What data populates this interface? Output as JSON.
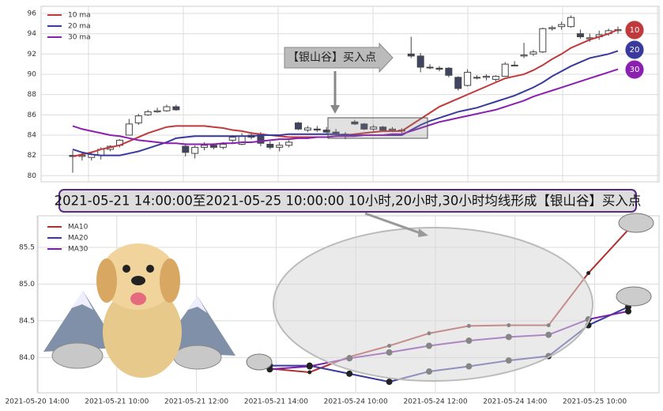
{
  "chart_data": [
    {
      "type": "candlestick",
      "annotation": "【银山谷】买入点",
      "badges": [
        "10",
        "20",
        "30"
      ],
      "ylim": [
        79.4,
        96.7
      ],
      "yticks": [
        80,
        82,
        84,
        86,
        88,
        90,
        92,
        94,
        96
      ],
      "grid": true,
      "legend": "upper left",
      "open": [
        82,
        81.9,
        81.8,
        82,
        82.6,
        83,
        84,
        85.2,
        86,
        86.3,
        86.4,
        86.8,
        82.9,
        82.2,
        82.8,
        83,
        82.8,
        83.5,
        83.1,
        84,
        84.1,
        83.1,
        82.8,
        83,
        85.2,
        84.5,
        84.6,
        84.5,
        84.3,
        84.1,
        85.3,
        85.1,
        84.6,
        84.8,
        84.5,
        84.5,
        92,
        91.8,
        90.7,
        90.6,
        90.6,
        89.7,
        88.9,
        89.7,
        89.7,
        89.5,
        89.8,
        90.9,
        91.8,
        92,
        92.2,
        94.5,
        94.7,
        94.7,
        94,
        93.5,
        93.7,
        94,
        94.3
      ],
      "high": [
        82.5,
        82.3,
        82.4,
        82.8,
        83,
        83.6,
        85.6,
        86.1,
        86.5,
        86.7,
        87,
        87,
        83.2,
        83,
        83.3,
        83.2,
        83.3,
        84,
        84.2,
        84.3,
        84.3,
        83.4,
        83.3,
        83.5,
        85.3,
        84.9,
        84.9,
        84.8,
        84.6,
        84.3,
        85.5,
        85.2,
        85,
        84.9,
        84.8,
        84.7,
        93.7,
        92.1,
        91,
        90.8,
        90.7,
        89.8,
        90.5,
        89.9,
        90,
        89.9,
        91.2,
        91.3,
        93.1,
        92.4,
        94.6,
        94.8,
        95.2,
        95.8,
        94.4,
        94,
        94.3,
        94.5,
        94.7
      ],
      "low": [
        80.3,
        81.5,
        81.5,
        81.6,
        82.4,
        82.8,
        84,
        85,
        85.9,
        86.2,
        86.3,
        86.4,
        81.9,
        81.7,
        82.5,
        82.6,
        82.6,
        83.2,
        83,
        83.6,
        82.9,
        82.6,
        82.4,
        82.8,
        84.5,
        84.3,
        84.3,
        84.2,
        84,
        83.6,
        85,
        84.5,
        84.4,
        84.4,
        84.3,
        84.2,
        91.6,
        90.2,
        90.5,
        90.3,
        89.7,
        88.4,
        88.8,
        89.5,
        89.4,
        89.3,
        89.8,
        90.8,
        91.6,
        91.8,
        92.1,
        94.3,
        94.4,
        94.6,
        93.5,
        93.2,
        93.4,
        93.8,
        94
      ],
      "close": [
        81.9,
        82,
        82.1,
        82.6,
        82.9,
        83.5,
        85.1,
        85.9,
        86.3,
        86.4,
        86.8,
        86.5,
        82.3,
        82.8,
        83,
        82.8,
        83.1,
        83.8,
        83.9,
        83.8,
        83.2,
        82.8,
        83,
        83.3,
        84.6,
        84.7,
        84.5,
        84.3,
        84.2,
        83.9,
        85.1,
        84.6,
        84.8,
        84.5,
        84.6,
        84.4,
        91.8,
        90.7,
        90.7,
        90.5,
        89.9,
        88.6,
        90.2,
        89.7,
        89.8,
        89.8,
        91,
        90.9,
        91.9,
        92.2,
        94.5,
        94.6,
        94.9,
        95.6,
        93.7,
        93.6,
        93.9,
        94.3,
        94.4
      ],
      "series": [
        {
          "name": "10 ma",
          "color": "#c0393b",
          "values": [
            81.9,
            82.1,
            82.3,
            82.6,
            82.8,
            83,
            83.4,
            83.8,
            84.2,
            84.5,
            84.8,
            84.9,
            84.9,
            84.9,
            84.9,
            84.8,
            84.7,
            84.5,
            84.4,
            84.2,
            84.1,
            84,
            83.9,
            83.8,
            83.8,
            83.8,
            83.8,
            83.8,
            83.9,
            84,
            84.1,
            84.2,
            84.3,
            84.4,
            84.4,
            84.4,
            85,
            85.6,
            86.2,
            86.8,
            87.2,
            87.6,
            88,
            88.4,
            88.8,
            89.2,
            89.6,
            89.8,
            90,
            90.4,
            90.9,
            91.5,
            92,
            92.6,
            93,
            93.4,
            93.7,
            94,
            94.4
          ]
        },
        {
          "name": "20 ma",
          "color": "#3a3a9c",
          "values": [
            82.6,
            82.3,
            82.1,
            82,
            82,
            82,
            82.2,
            82.4,
            82.7,
            83,
            83.3,
            83.7,
            83.8,
            83.9,
            83.9,
            83.9,
            83.9,
            83.9,
            83.9,
            83.9,
            84,
            84,
            84,
            84.1,
            84.1,
            84.1,
            84.1,
            84.1,
            84.1,
            84,
            84,
            84,
            84,
            84,
            84,
            84,
            84.5,
            85,
            85.4,
            85.7,
            86,
            86.3,
            86.5,
            86.7,
            87,
            87.3,
            87.6,
            87.9,
            88.3,
            88.7,
            89.2,
            89.8,
            90.3,
            90.8,
            91.2,
            91.6,
            91.8,
            92,
            92.3
          ]
        },
        {
          "name": "30 ma",
          "color": "#8a1fb0",
          "values": [
            84.9,
            84.6,
            84.4,
            84.2,
            84,
            83.9,
            83.7,
            83.5,
            83.4,
            83.3,
            83.2,
            83.2,
            83.1,
            83.1,
            83.1,
            83.1,
            83.2,
            83.2,
            83.3,
            83.3,
            83.4,
            83.5,
            83.6,
            83.6,
            83.7,
            83.7,
            83.8,
            83.8,
            83.9,
            83.9,
            83.9,
            84,
            84,
            84,
            84.1,
            84.1,
            84.4,
            84.7,
            85,
            85.3,
            85.5,
            85.7,
            85.9,
            86.1,
            86.3,
            86.5,
            86.8,
            87.1,
            87.4,
            87.8,
            88.1,
            88.4,
            88.7,
            89,
            89.3,
            89.6,
            89.9,
            90.2,
            90.5
          ]
        }
      ]
    },
    {
      "type": "line",
      "title": "2021-05-21 14:00:00至2021-05-25 10:00:00 10小时,20小时,30小时均线形成【银山谷】买入点",
      "categories": [
        "2021-05-20 14:00",
        null,
        "2021-05-21 10:00",
        null,
        "2021-05-21 12:00",
        null,
        "2021-05-21 14:00",
        null,
        "2021-05-24 10:00",
        null,
        "2021-05-24 12:00",
        null,
        "2021-05-24 14:00",
        null,
        "2021-05-25 10:00",
        null
      ],
      "ylim": [
        83.52,
        85.93
      ],
      "yticks": [
        {
          "value": 84,
          "label": "84.0"
        },
        {
          "value": 84.5,
          "label": "84.5"
        },
        {
          "value": 85,
          "label": "85.0"
        },
        {
          "value": 85.5,
          "label": "85.5"
        }
      ],
      "grid": true,
      "legend": "upper left",
      "series": [
        {
          "name": "MA10",
          "color": "#b03030",
          "values": [
            null,
            null,
            null,
            null,
            null,
            null,
            83.85,
            83.8,
            84.01,
            84.16,
            84.33,
            84.43,
            84.44,
            84.44,
            85.15,
            85.74
          ]
        },
        {
          "name": "MA20",
          "color": "#3a3a9c",
          "values": [
            null,
            null,
            null,
            null,
            null,
            null,
            83.89,
            83.89,
            83.78,
            83.67,
            83.81,
            83.88,
            83.96,
            84.02,
            84.44,
            84.69
          ]
        },
        {
          "name": "MA30",
          "color": "#7a1fa8",
          "values": [
            null,
            null,
            null,
            null,
            null,
            null,
            83.84,
            83.88,
            83.99,
            84.07,
            84.16,
            84.23,
            84.28,
            84.31,
            84.52,
            84.63
          ]
        }
      ]
    }
  ]
}
